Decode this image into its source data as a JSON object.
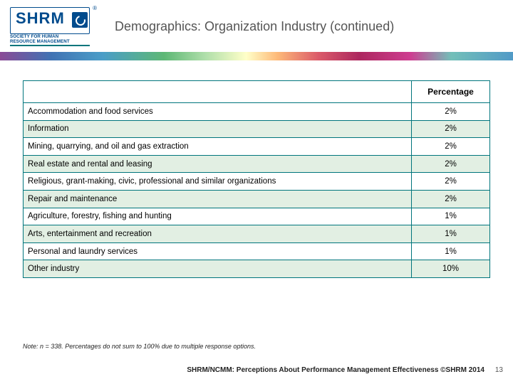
{
  "title": "Demographics: Organization Industry (continued)",
  "logo": {
    "abbr": "SHRM",
    "subline1": "SOCIETY FOR HUMAN",
    "subline2": "RESOURCE MANAGEMENT",
    "registered": "®"
  },
  "colors": {
    "table_border": "#00757c",
    "row_alt_bg": "#e2efe3",
    "title_color": "#555555",
    "logo_blue": "#004b8d"
  },
  "table": {
    "header_empty": "",
    "header_pct": "Percentage",
    "col_widths": {
      "name": "auto",
      "pct": 110
    },
    "font_size": 11.5,
    "rows": [
      {
        "name": "Accommodation and food services",
        "pct": "2%"
      },
      {
        "name": "Information",
        "pct": "2%"
      },
      {
        "name": "Mining, quarrying, and oil and gas extraction",
        "pct": "2%"
      },
      {
        "name": "Real estate and rental and leasing",
        "pct": "2%"
      },
      {
        "name": "Religious, grant-making, civic, professional and similar organizations",
        "pct": "2%"
      },
      {
        "name": "Repair and maintenance",
        "pct": "2%"
      },
      {
        "name": "Agriculture, forestry, fishing and hunting",
        "pct": "1%"
      },
      {
        "name": "Arts, entertainment and recreation",
        "pct": "1%"
      },
      {
        "name": "Personal and laundry services",
        "pct": "1%"
      },
      {
        "name": "Other industry",
        "pct": "10%"
      }
    ]
  },
  "note": "Note: n = 338. Percentages do not sum to 100% due to multiple response options.",
  "footer": "SHRM/NCMM: Perceptions About Performance Management Effectiveness ©SHRM 2014",
  "page_number": "13"
}
